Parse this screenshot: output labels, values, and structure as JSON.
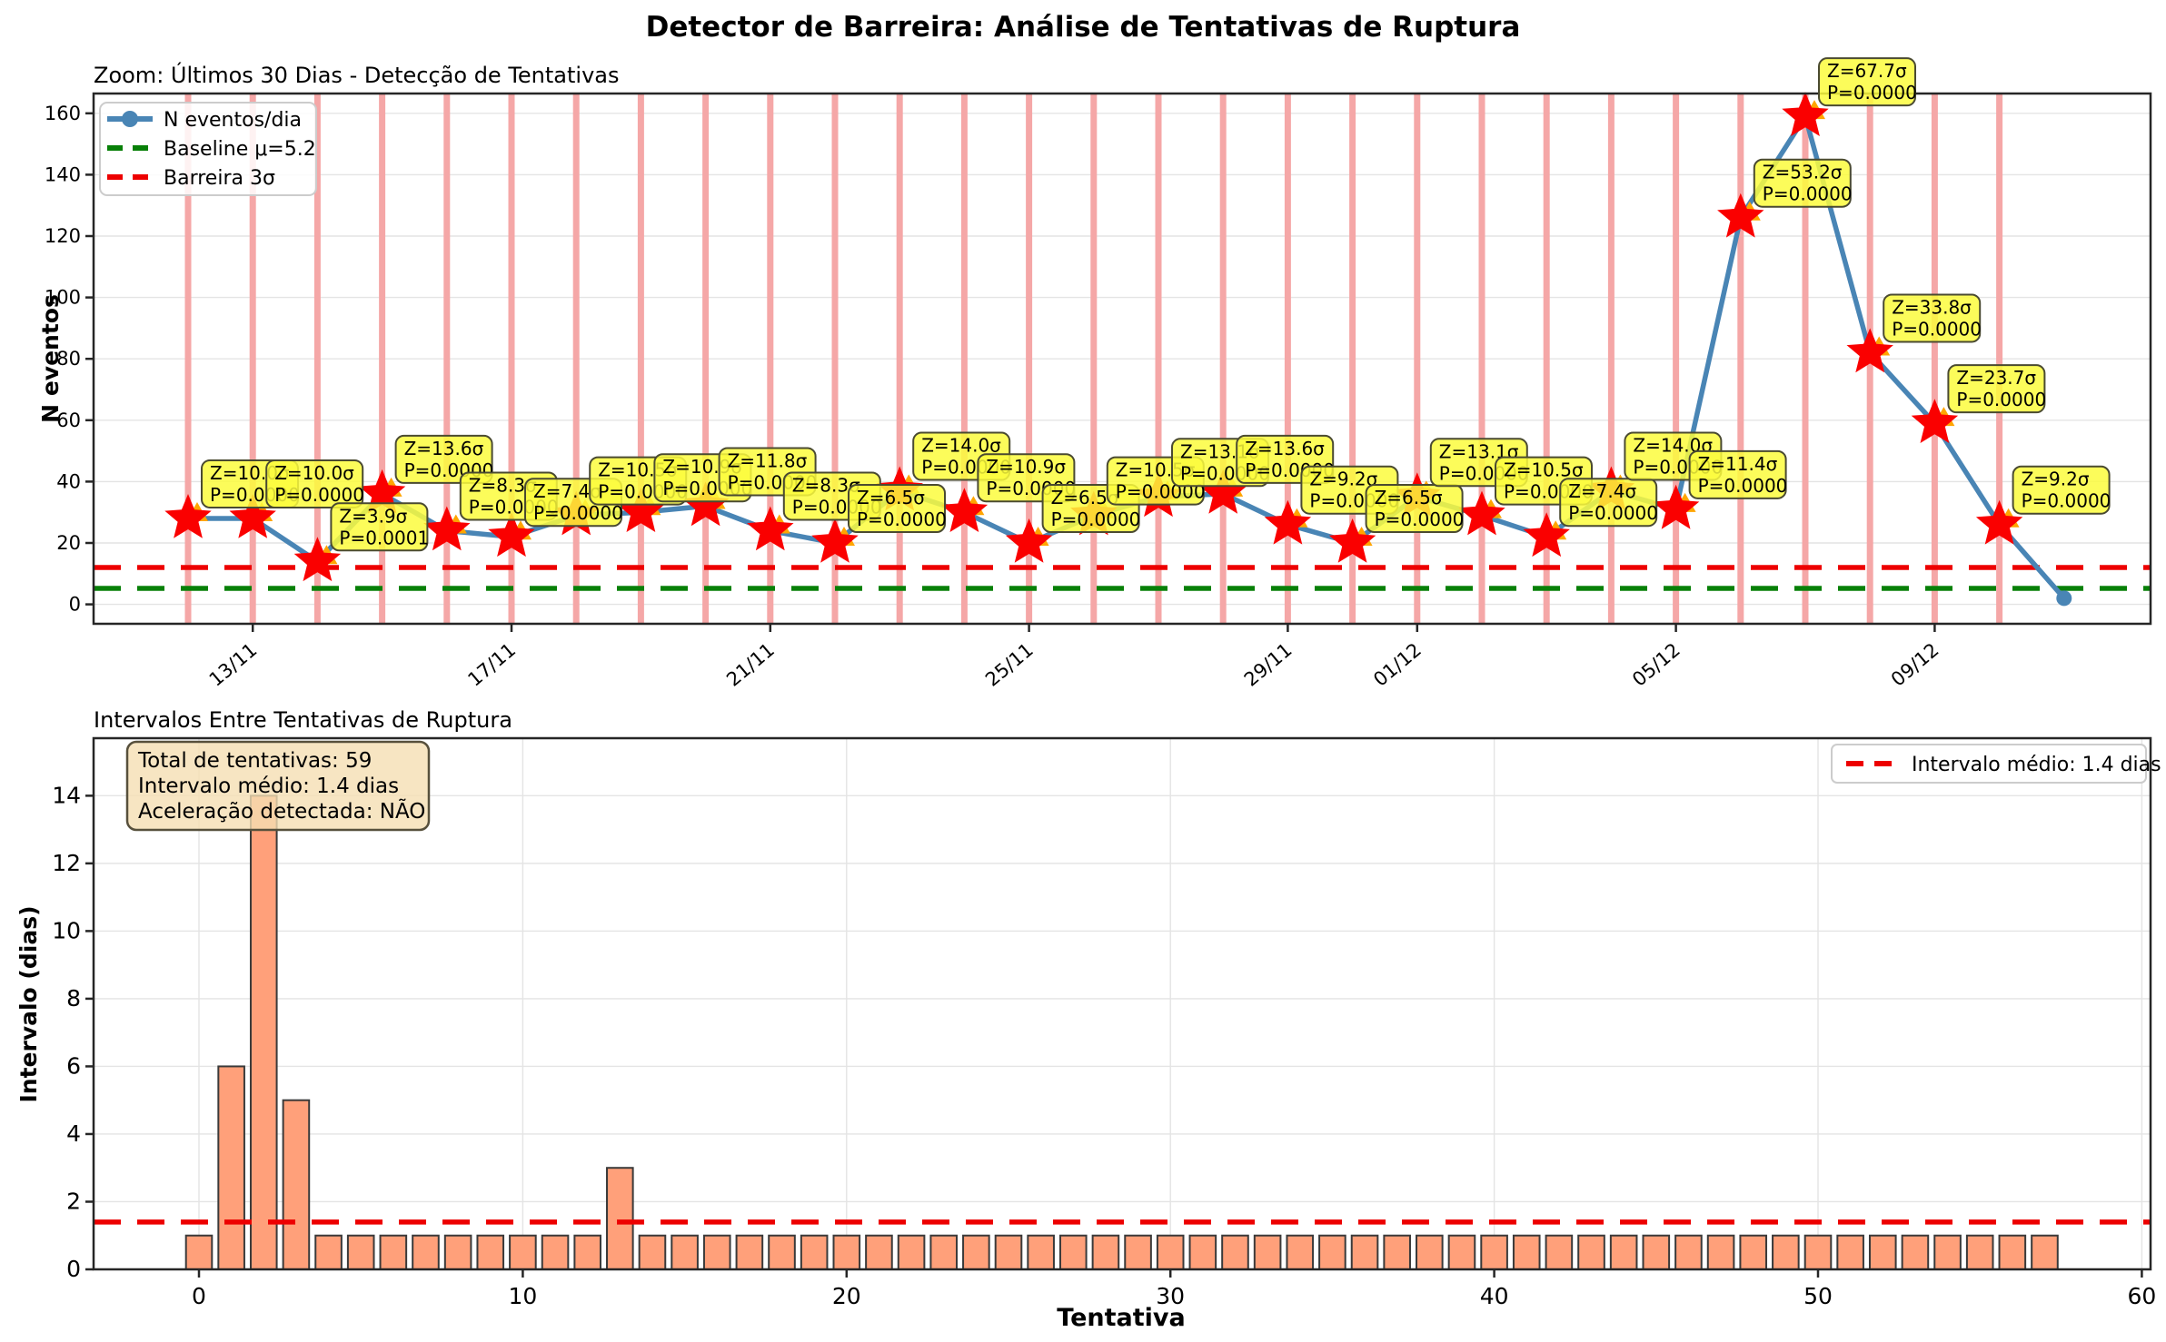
{
  "app": {
    "title": "Detector de Barreira: Análise de Tentativas de Ruptura"
  },
  "colors": {
    "line": "#4985B5",
    "marker": "#4985B5",
    "star": "#FA0000",
    "triangle": "#FFA500",
    "event_vline": "#F5A7A7",
    "barrier_line": "#ED0000",
    "baseline_line": "#088008",
    "annotation_bg": "#FBFB3D",
    "annotation_border": "#4A4A31",
    "bar_fill": "#FFA07A",
    "bar_edge": "#3A3A3A",
    "mean_line": "#ED0000",
    "info_bg": "#F5DEB3",
    "info_border": "#57503C",
    "grid": "#E4E4E4",
    "spine": "#262626"
  },
  "chart_data": [
    {
      "type": "line",
      "title": "Zoom: Últimos 30 Dias - Detecção de Tentativas",
      "ylabel": "N eventos",
      "legend": [
        {
          "label": "N eventos/dia",
          "style": "line-marker",
          "color": "#4985B5"
        },
        {
          "label": "Baseline μ=5.2",
          "style": "dashed",
          "color": "#088008"
        },
        {
          "label": "Barreira 3σ",
          "style": "dashed",
          "color": "#ED0000"
        }
      ],
      "values": [
        28,
        28,
        14,
        36,
        24,
        22,
        29,
        30,
        32,
        24,
        20,
        37,
        30,
        20,
        29,
        35,
        36,
        26,
        20,
        35,
        29,
        22,
        37,
        31,
        126,
        159,
        82,
        59,
        26,
        2
      ],
      "baseline_mu": 5.2,
      "barrier_3sigma": 12,
      "ylim": [
        -6.3,
        166.5
      ],
      "yticks": [
        0,
        20,
        40,
        60,
        80,
        100,
        120,
        140,
        160
      ],
      "xticks": [
        {
          "day": 1,
          "label": "13/11"
        },
        {
          "day": 5,
          "label": "17/11"
        },
        {
          "day": 9,
          "label": "21/11"
        },
        {
          "day": 13,
          "label": "25/11"
        },
        {
          "day": 17,
          "label": "29/11"
        },
        {
          "day": 19,
          "label": "01/12"
        },
        {
          "day": 23,
          "label": "05/12"
        },
        {
          "day": 27,
          "label": "09/12"
        }
      ],
      "detections": [
        {
          "day": 0,
          "z": "10.0",
          "p": "0.0000"
        },
        {
          "day": 1,
          "z": "10.0",
          "p": "0.0000"
        },
        {
          "day": 2,
          "z": "3.9",
          "p": "0.0001"
        },
        {
          "day": 3,
          "z": "13.6",
          "p": "0.0000"
        },
        {
          "day": 4,
          "z": "8.3",
          "p": "0.0000"
        },
        {
          "day": 5,
          "z": "7.4",
          "p": "0.0000"
        },
        {
          "day": 6,
          "z": "10.5",
          "p": "0.0000"
        },
        {
          "day": 7,
          "z": "10.9",
          "p": "0.0000"
        },
        {
          "day": 8,
          "z": "11.8",
          "p": "0.0000"
        },
        {
          "day": 9,
          "z": "8.3",
          "p": "0.0000"
        },
        {
          "day": 10,
          "z": "6.5",
          "p": "0.0000"
        },
        {
          "day": 11,
          "z": "14.0",
          "p": "0.0000"
        },
        {
          "day": 12,
          "z": "10.9",
          "p": "0.0000"
        },
        {
          "day": 13,
          "z": "6.5",
          "p": "0.0000"
        },
        {
          "day": 14,
          "z": "10.5",
          "p": "0.0000"
        },
        {
          "day": 15,
          "z": "13.1",
          "p": "0.0000"
        },
        {
          "day": 16,
          "z": "13.6",
          "p": "0.0000"
        },
        {
          "day": 17,
          "z": "9.2",
          "p": "0.0000"
        },
        {
          "day": 18,
          "z": "6.5",
          "p": "0.0000"
        },
        {
          "day": 19,
          "z": "13.1",
          "p": "0.0000"
        },
        {
          "day": 20,
          "z": "10.5",
          "p": "0.0000"
        },
        {
          "day": 21,
          "z": "7.4",
          "p": "0.0000"
        },
        {
          "day": 22,
          "z": "14.0",
          "p": "0.0000"
        },
        {
          "day": 23,
          "z": "11.4",
          "p": "0.0000"
        },
        {
          "day": 24,
          "z": "53.2",
          "p": "0.0000"
        },
        {
          "day": 25,
          "z": "67.7",
          "p": "0.0000"
        },
        {
          "day": 26,
          "z": "33.8",
          "p": "0.0000"
        },
        {
          "day": 27,
          "z": "23.7",
          "p": "0.0000"
        },
        {
          "day": 28,
          "z": "9.2",
          "p": "0.0000"
        }
      ]
    },
    {
      "type": "bar",
      "title": "Intervalos Entre Tentativas de Ruptura",
      "xlabel": "Tentativa",
      "ylabel": "Intervalo (dias)",
      "values": [
        1,
        6,
        14,
        5,
        1,
        1,
        1,
        1,
        1,
        1,
        1,
        1,
        1,
        3,
        1,
        1,
        1,
        1,
        1,
        1,
        1,
        1,
        1,
        1,
        1,
        1,
        1,
        1,
        1,
        1,
        1,
        1,
        1,
        1,
        1,
        1,
        1,
        1,
        1,
        1,
        1,
        1,
        1,
        1,
        1,
        1,
        1,
        1,
        1,
        1,
        1,
        1,
        1,
        1,
        1,
        1,
        1,
        1
      ],
      "mean_interval": 1.4,
      "legend_label": "Intervalo médio: 1.4 dias",
      "info_box": [
        "Total de tentativas: 59",
        "Intervalo médio: 1.4 dias",
        "Aceleração detectada: NÃO"
      ],
      "xticks": [
        0,
        10,
        20,
        30,
        40,
        50,
        60
      ],
      "yticks": [
        0,
        2,
        4,
        6,
        8,
        10,
        12,
        14
      ],
      "ylim": [
        0,
        15.7
      ]
    }
  ]
}
